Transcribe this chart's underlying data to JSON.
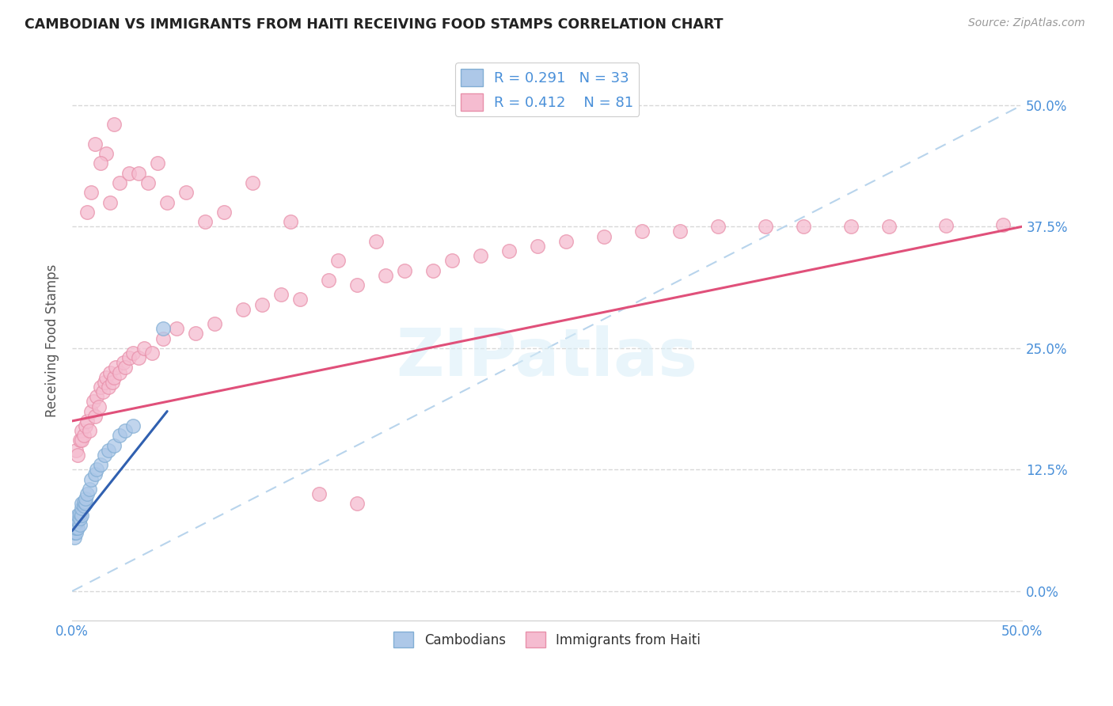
{
  "title": "CAMBODIAN VS IMMIGRANTS FROM HAITI RECEIVING FOOD STAMPS CORRELATION CHART",
  "source": "Source: ZipAtlas.com",
  "ylabel": "Receiving Food Stamps",
  "xlim": [
    0.0,
    0.5
  ],
  "ylim": [
    -0.03,
    0.545
  ],
  "yticks": [
    0.0,
    0.125,
    0.25,
    0.375,
    0.5
  ],
  "ytick_labels": [
    "0.0%",
    "12.5%",
    "25.0%",
    "37.5%",
    "50.0%"
  ],
  "xtick_labels_left": "0.0%",
  "xtick_labels_right": "50.0%",
  "watermark": "ZIPatlas",
  "cambodian_color": "#adc8e8",
  "cambodian_edge_color": "#82aed4",
  "haiti_color": "#f5bcd0",
  "haiti_edge_color": "#e890aa",
  "trend_cambodian_color": "#3060b0",
  "trend_haiti_color": "#e0507a",
  "R_cambodian": 0.291,
  "N_cambodian": 33,
  "R_haiti": 0.412,
  "N_haiti": 81,
  "legend_label_cambodian": "Cambodians",
  "legend_label_haiti": "Immigrants from Haiti",
  "cambodian_x": [
    0.001,
    0.001,
    0.001,
    0.002,
    0.002,
    0.002,
    0.002,
    0.003,
    0.003,
    0.003,
    0.004,
    0.004,
    0.004,
    0.005,
    0.005,
    0.005,
    0.006,
    0.006,
    0.007,
    0.007,
    0.008,
    0.009,
    0.01,
    0.012,
    0.013,
    0.015,
    0.017,
    0.019,
    0.022,
    0.025,
    0.028,
    0.032,
    0.048
  ],
  "cambodian_y": [
    0.055,
    0.06,
    0.065,
    0.06,
    0.065,
    0.07,
    0.075,
    0.065,
    0.072,
    0.078,
    0.068,
    0.075,
    0.08,
    0.078,
    0.085,
    0.09,
    0.088,
    0.092,
    0.09,
    0.095,
    0.1,
    0.105,
    0.115,
    0.12,
    0.125,
    0.13,
    0.14,
    0.145,
    0.15,
    0.16,
    0.165,
    0.17,
    0.27
  ],
  "haiti_x": [
    0.002,
    0.003,
    0.004,
    0.005,
    0.005,
    0.006,
    0.007,
    0.008,
    0.009,
    0.01,
    0.011,
    0.012,
    0.013,
    0.014,
    0.015,
    0.016,
    0.017,
    0.018,
    0.019,
    0.02,
    0.021,
    0.022,
    0.023,
    0.025,
    0.027,
    0.028,
    0.03,
    0.032,
    0.035,
    0.038,
    0.042,
    0.048,
    0.055,
    0.065,
    0.075,
    0.09,
    0.1,
    0.11,
    0.12,
    0.135,
    0.15,
    0.165,
    0.175,
    0.19,
    0.2,
    0.215,
    0.23,
    0.245,
    0.26,
    0.28,
    0.3,
    0.32,
    0.34,
    0.365,
    0.385,
    0.41,
    0.43,
    0.46,
    0.49,
    0.13,
    0.15,
    0.02,
    0.025,
    0.018,
    0.022,
    0.03,
    0.012,
    0.015,
    0.008,
    0.01,
    0.035,
    0.04,
    0.045,
    0.05,
    0.06,
    0.07,
    0.08,
    0.095,
    0.115,
    0.14,
    0.16
  ],
  "haiti_y": [
    0.145,
    0.14,
    0.155,
    0.165,
    0.155,
    0.16,
    0.17,
    0.175,
    0.165,
    0.185,
    0.195,
    0.18,
    0.2,
    0.19,
    0.21,
    0.205,
    0.215,
    0.22,
    0.21,
    0.225,
    0.215,
    0.22,
    0.23,
    0.225,
    0.235,
    0.23,
    0.24,
    0.245,
    0.24,
    0.25,
    0.245,
    0.26,
    0.27,
    0.265,
    0.275,
    0.29,
    0.295,
    0.305,
    0.3,
    0.32,
    0.315,
    0.325,
    0.33,
    0.33,
    0.34,
    0.345,
    0.35,
    0.355,
    0.36,
    0.365,
    0.37,
    0.37,
    0.375,
    0.375,
    0.375,
    0.375,
    0.375,
    0.376,
    0.377,
    0.1,
    0.09,
    0.4,
    0.42,
    0.45,
    0.48,
    0.43,
    0.46,
    0.44,
    0.39,
    0.41,
    0.43,
    0.42,
    0.44,
    0.4,
    0.41,
    0.38,
    0.39,
    0.42,
    0.38,
    0.34,
    0.36
  ],
  "haiti_trend_x0": 0.0,
  "haiti_trend_y0": 0.175,
  "haiti_trend_x1": 0.5,
  "haiti_trend_y1": 0.375,
  "cam_trend_x0": 0.0,
  "cam_trend_y0": 0.062,
  "cam_trend_x1": 0.05,
  "cam_trend_y1": 0.185
}
